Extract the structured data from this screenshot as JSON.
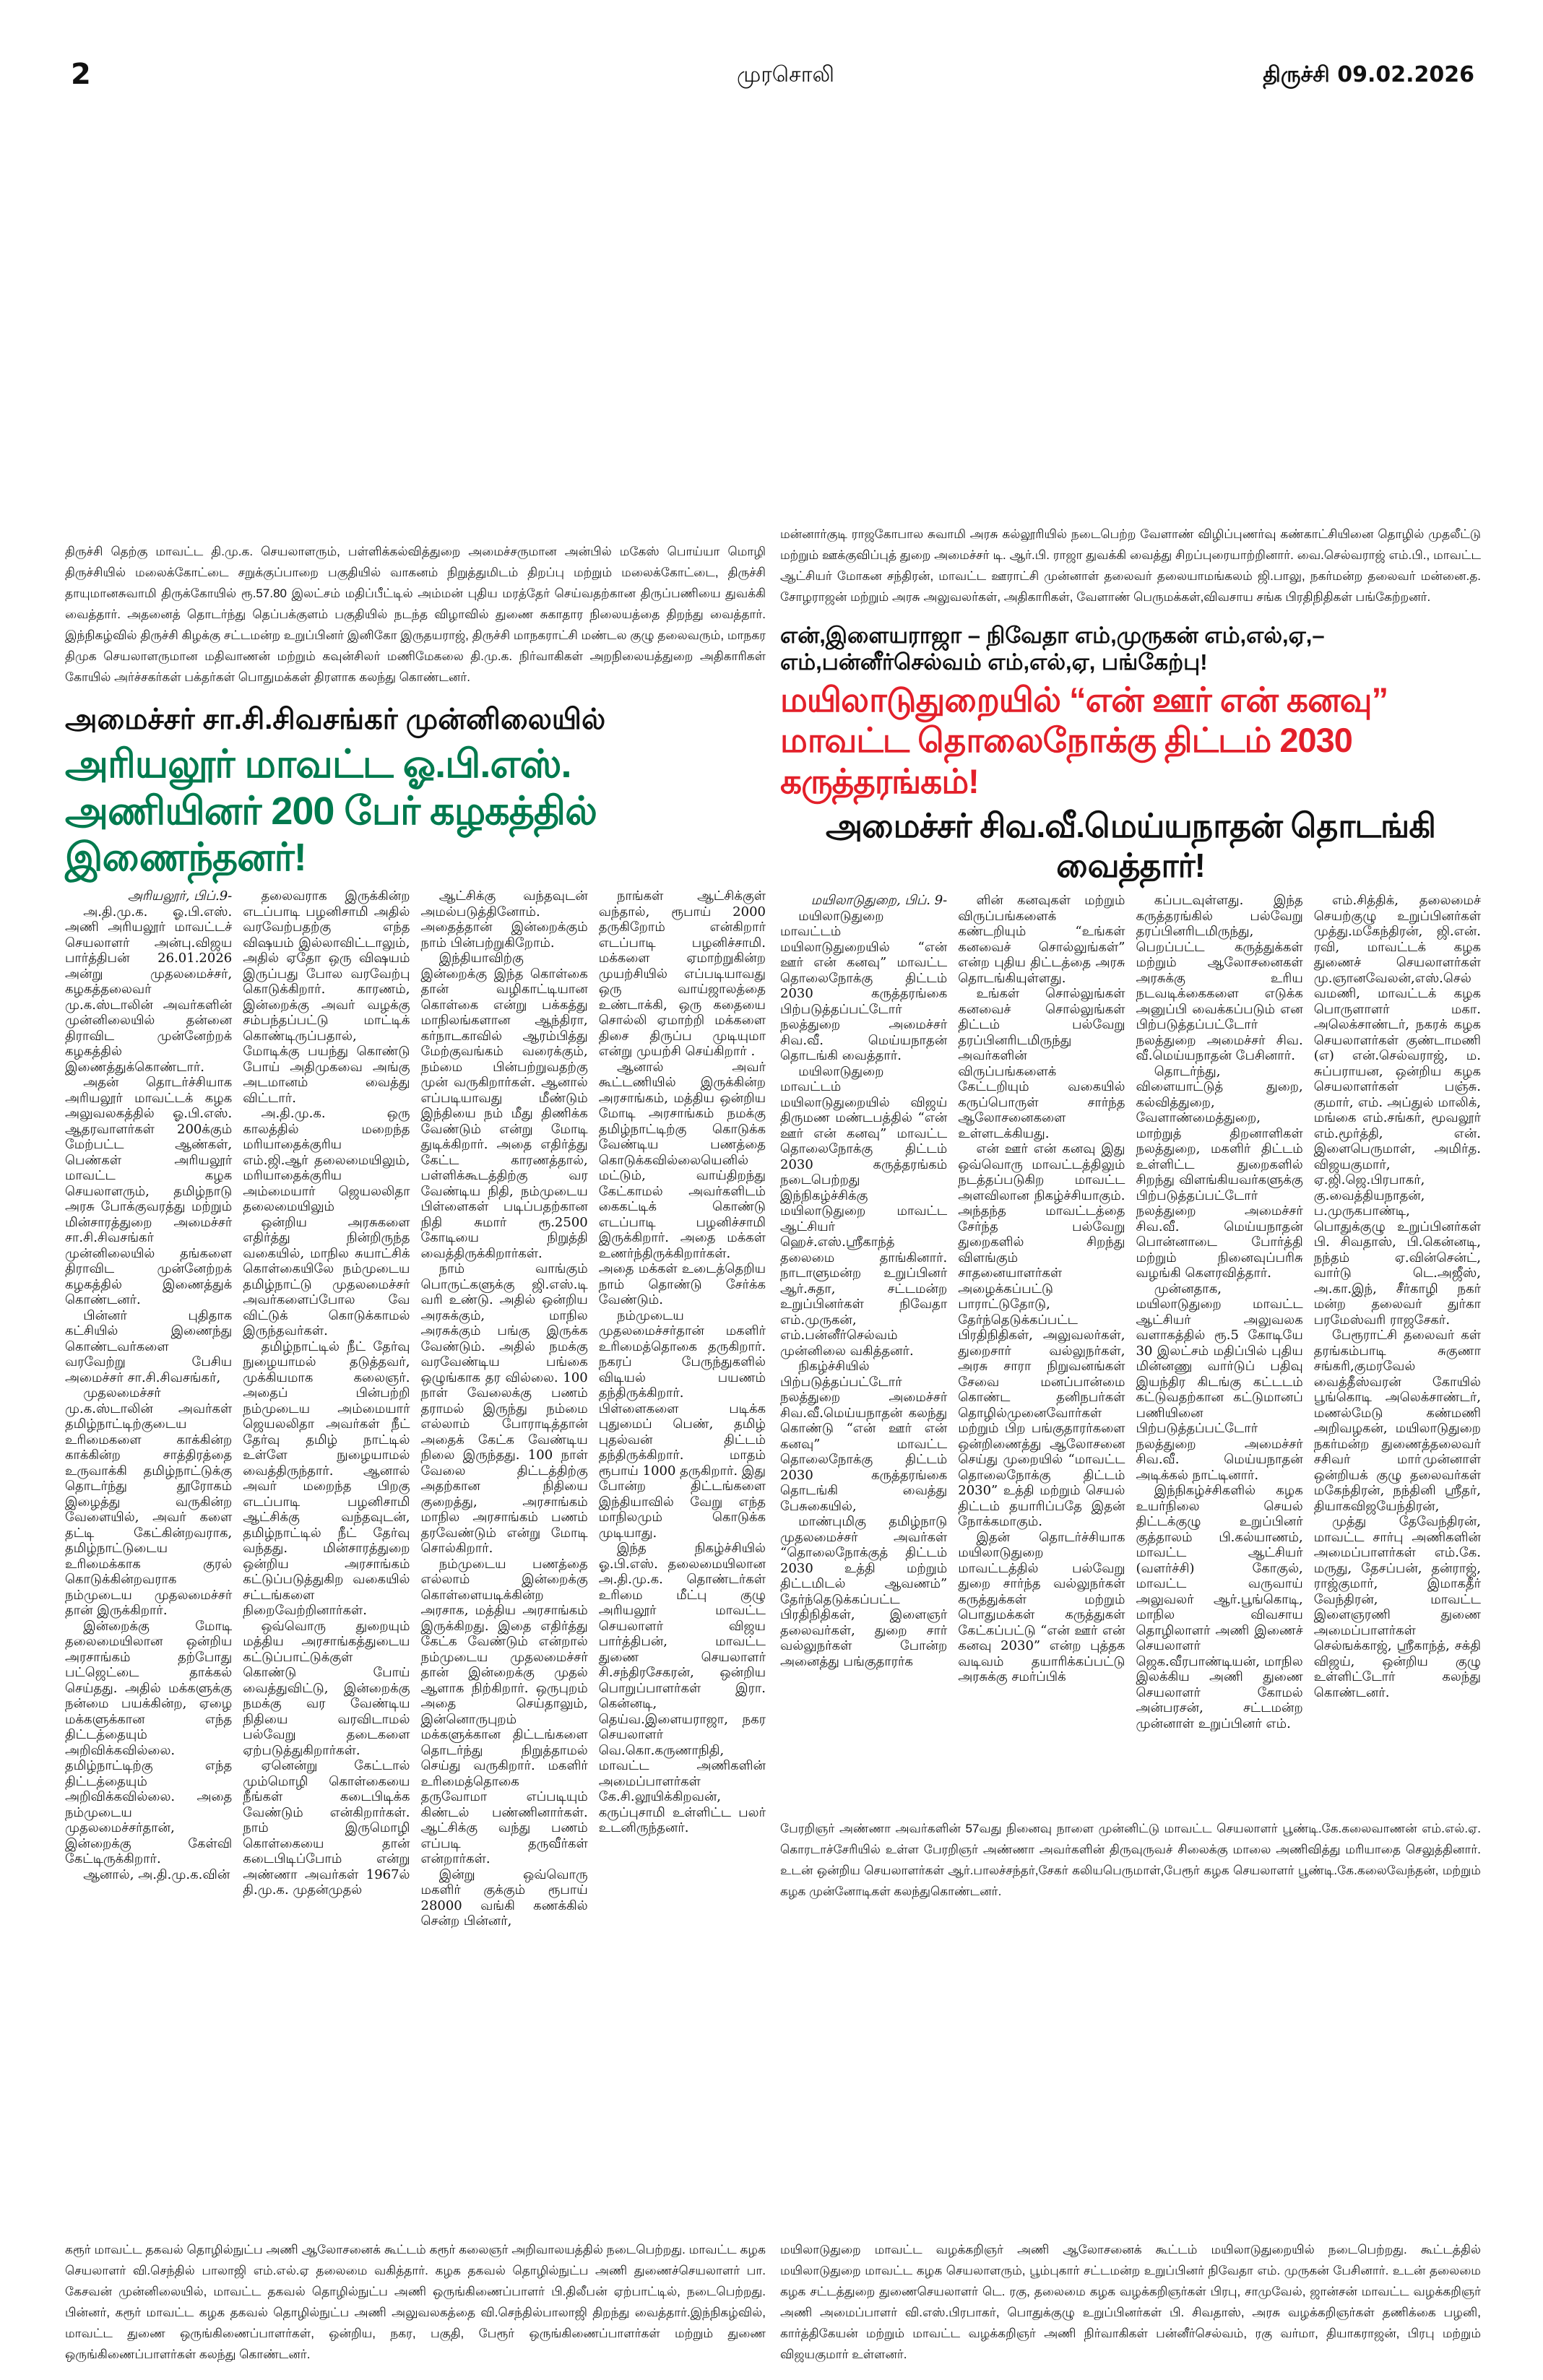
{
  "header": {
    "page_number": "2",
    "masthead": "முரசொலி",
    "edition_date": "திருச்சி  09.02.2026"
  },
  "colors": {
    "headline_red": "#e3202a",
    "headline_green": "#007a4e",
    "text": "#111111"
  },
  "captions": {
    "mannargudi": "மன்னார்குடி ராஜகோபால சுவாமி அரசு கல்லூரியில் நடைபெற்ற வேளாண் விழிப்புணர்வு கண்காட்சியினை தொழில் முதலீட்டு மற்றும் ஊக்குவிப்புத் துறை அமைச்சர் டி. ஆர்.பி. ராஜா துவக்கி வைத்து சிறப்புரையாற்றினார். வை.செல்வராஜ் எம்.பி., மாவட்ட ஆட்சியர் மோகன சந்திரன், மாவட்ட ஊராட்சி முன்னாள் தலைவர் தலையாமங்கலம் ஜி.பாலு, நகர்மன்ற தலைவர் மன்னை.த. சோழராஜன் மற்றும் அரசு அலுவலர்கள், அதிகாரிகள், வேளாண் பெருமக்கள்,விவசாய சங்க பிரதிநிதிகள் பங்கேற்றனர்.",
    "trichy": "திருச்சி தெற்கு மாவட்ட தி.மு.க. செயலாளரும், பள்ளிக்கல்வித்துறை அமைச்சருமான அன்பில் மகேஸ் பொய்யா மொழி திருச்சியில் மலைக்கோட்டை சறுக்குப்பாறை பகுதியில் வாகனம் நிறுத்துமிடம் திறப்பு மற்றும் மலைக்கோட்டை, திருச்சி தாயுமானசுவாமி திருக்கோயில் ரூ.57.80 இலட்சம் மதிப்பீட்டில் அம்மன் புதிய மரத்தேர் செய்வதற்கான திருப்பணியை துவக்கி வைத்தார். அதனைத் தொடர்ந்து தெப்பக்குளம் பகுதியில் நடந்த விழாவில் துணை சுகாதார நிலையத்தை திறந்து வைத்தார். இந்நிகழ்வில் திருச்சி கிழக்கு சட்டமன்ற உறுப்பினர் இனிகோ இருதயராஜ், திருச்சி மாநகராட்சி மண்டல குழு தலைவரும், மாநகர திமுக செயலாளருமான மதிவாணன் மற்றும் கவுன்சிலர் மணிமேகலை தி.மு.க. நிர்வாகிகள் அறநிலையத்துறை அதிகாரிகள் கோயில் அர்ச்சகர்கள் பக்தர்கள் பொதுமக்கள் திரளாக கலந்து கொண்டனர்.",
    "anna": "பேரறிஞர் அண்ணா அவர்களின் 57வது நினைவு நாளை முன்னிட்டு மாவட்ட செயலாளர் பூண்டி.கே.கலைவாணன் எம்.எல்.ஏ. கொரடாச்சேரியில் உள்ள பேரறிஞர் அண்ணா அவர்களின் திருவுருவச் சிலைக்கு மாலை அணிவித்து மரியாதை செலுத்தினார். உடன் ஒன்றிய செயலாளர்கள் ஆர்.பாலச்சந்தர்,சேகர் கலியபெருமாள்,பேரூர் கழக செயலாளர் பூண்டி.கே.கலைவேந்தன், மற்றும் கழக முன்னோடிகள் கலந்துகொண்டனர்.",
    "karur": "கரூர் மாவட்ட தகவல் தொழில்நுட்ப அணி ஆலோசனைக் கூட்டம் கரூர் கலைஞர் அறிவாலயத்தில் நடைபெற்றது. மாவட்ட கழக செயலாளர் வி.செந்தில் பாலாஜி எம்.எல்.ஏ தலைமை வகித்தார். கழக தகவல் தொழில்நுட்ப அணி துணைச்செயலாளர் பா. கேசவன் முன்னிலையில், மாவட்ட தகவல் தொழில்நுட்ப அணி ஒருங்கிணைப்பாளர் பி.திலீபன் ஏற்பாட்டில், நடைபெற்றது. பின்னர், கரூர் மாவட்ட கழக தகவல் தொழில்நுட்ப அணி அலுவலகத்தை வி.செந்தில்பாலாஜி திறந்து வைத்தார்.இந்நிகழ்வில், மாவட்ட துணை ஒருங்கிணைப்பாளர்கள், ஒன்றிய, நகர, பகுதி, பேரூர் ஒருங்கிணைப்பாளர்கள் மற்றும் துணை ஒருங்கிணைப்பாளர்கள் கலந்து கொண்டனர்.",
    "mayiladuthurai_lawyers": "மயிலாடுதுறை மாவட்ட வழக்கறிஞர் அணி ஆலோசனைக் கூட்டம் மயிலாடுதுறையில் நடைபெற்றது. கூட்டத்தில் மயிலாடுதுறை மாவட்ட கழக செயலாளரும், பூம்புகார் சட்டமன்ற உறுப்பினர் நிவேதா எம். முருகன் பேசினார். உடன் தலைமை கழக சட்டத்துறை துணைசெயலாளர் டெ. ரகு, தலைமை கழக வழக்கறிஞர்கள் பிரபு, சாமுவேல், ஜான்சன் மாவட்ட வழக்கறிஞர் அணி அமைப்பாளர் வி.எஸ்.பிரபாகர், பொதுக்குழு உறுப்பினர்கள் பி. சிவதாஸ், அரசு வழக்கறிஞர்கள் தணிக்கை பழனி, கார்த்திகேயன் மற்றும் மாவட்ட வழக்கறிஞர் அணி நிர்வாகிகள் பன்னீர்செல்வம், ரகு வர்மா, தியாகராஜன், பிரபு மற்றும் விஜயகுமார் உள்ளனர்."
  },
  "article_right": {
    "kicker": "என்,இளையராஜா – நிவேதா எம்,முருகன் எம்,எல்,ஏ,– எம்,பன்னீர்செல்வம் எம்,எல்,ஏ, பங்கேற்பு!",
    "headline": "மயிலாடுதுறையில் “என் ஊர் என் கனவு” மாவட்ட தொலைநோக்கு திட்டம் 2030 கருத்தரங்கம்!",
    "subheadline": "அமைச்சர் சிவ.வீ.மெய்யநாதன் தொடங்கி வைத்தார்!",
    "columns": [
      [
        "மயிலாடுதுறை, பிப். 9-",
        "மயிலாடுதுறை மாவட்டம் மயிலாடுதுறையில் “என் ஊர் என் கனவு” மாவட்ட தொலைநோக்கு திட்டம் 2030 கருத்தரங்கை பிற்படுத்தப்பட்டோர் நலத்துறை அமைச்சர் சிவ.வீ. மெய்யநாதன் தொடங்கி வைத்தார்.",
        "மயிலாடுதுறை மாவட்டம் மயிலாடுதுறையில் விஜய் திருமண மண்டபத்தில் “என் ஊர் என் கனவு” மாவட்ட தொலைநோக்கு திட்டம் 2030 கருத்தரங்கம் நடைபெற்றது இந்நிகழ்ச்சிக்கு மயிலாடுதுறை மாவட்ட ஆட்சியர் ஹெச்.எஸ்.ஸ்ரீகாந்த் தலைமை தாங்கினார். நாடாளுமன்ற உறுப்பினர் ஆர்.சுதா, சட்டமன்ற உறுப்பினர்கள் நிவேதா எம்.முருகன், எம்.பன்னீர்செல்வம் முன்னிலை வகித்தனர்.",
        "நிகழ்ச்சியில் பிற்படுத்தப்பட்டோர் நலத்துறை அமைச்சர் சிவ.வீ.மெய்யநாதன் கலந்து கொண்டு “என் ஊர் என் கனவு” மாவட்ட தொலைநோக்கு திட்டம் 2030 கருத்தரங்கை தொடங்கி வைத்து பேசுகையில்,",
        "மாண்புமிகு தமிழ்நாடு முதலமைச்சர் அவர்கள் “தொலைநோக்குத் திட்டம் 2030 உத்தி மற்றும் திட்டமிடல் ஆவணம்” தேர்ந்தெடுக்கப்பட்ட பிரதிநிதிகள், இளைஞர் தலைவர்கள், துறை சார் வல்லுநர்கள் போன்ற அனைத்து பங்குதாரர்க"
      ],
      [
        "ளின் கனவுகள் மற்றும் விருப்பங்களைக் கண்டறியும் “உங்கள் கனவைச் சொல்லுங்கள்” என்ற புதிய திட்டத்தை அரசு தொடங்கியுள்ளது.",
        "உங்கள் சொல்லுங்கள் கனவைச் சொல்லுங்கள் திட்டம் பல்வேறு தரப்பினரிடமிருந்து அவர்களின் விருப்பங்களைக் கேட்டறியும் வகையில் கருப்பொருள் சார்ந்த ஆலோசனைகளை உள்ளடக்கியது.",
        "என் ஊர் என் கனவு இது ஒவ்வொரு மாவட்டத்திலும் நடத்தப்படுகிற மாவட்ட அளவிலான நிகழ்ச்சியாகும். அந்தந்த மாவட்டத்தை சேர்ந்த பல்வேறு துறைகளில் சிறந்து விளங்கும் சாதனையாளர்கள் அழைக்கப்பட்டு பாராட்டுதோடு, தேர்ந்தெடுக்கப்பட்ட பிரதிநிதிகள், அலுவலர்கள், துறைசார் வல்லுநர்கள், அரசு சாரா நிறுவனங்கள் சேவை மனப்பான்மை கொண்ட தனிநபர்கள் தொழில்முனைவோர்கள் மற்றும் பிற பங்குதாரர்களை ஒன்றிணைத்து ஆலோசனை செய்து முறையில் “மாவட்ட தொலைநோக்கு திட்டம் 2030” உத்தி மற்றும் செயல் திட்டம் தயாரிப்பதே இதன் நோக்கமாகும்.",
        "இதன் தொடர்ச்சியாக மயிலாடுதுறை மாவட்டத்தில் பல்வேறு துறை சார்ந்த வல்லுநர்கள் கருத்துக்கள் மற்றும் பொதுமக்கள் கருத்துகள் கேட்கப்பட்டு “என் ஊர் என் கனவு 2030” என்ற புத்தக வடிவம் தயாரிக்கப்பட்டு அரசுக்கு சமர்ப்பிக்"
      ],
      [
        "கப்படவுள்ளது. இந்த கருத்தரங்கில் பல்வேறு தரப்பினரிடமிருந்து, பெறப்பட்ட கருத்துக்கள் மற்றும் ஆலோசனைகள் அரசுக்கு உரிய நடவடிக்கைகளை எடுக்க அனுப்பி வைக்கப்படும் என பிற்படுத்தப்பட்டோர் நலத்துறை அமைச்சர் சிவ. வீ.மெய்யநாதன் பேசினார்.",
        "தொடர்ந்து, விளையாட்டுத் துறை, கல்வித்துறை, வேளாண்மைத்துறை, மாற்றுத் திறனாளிகள் நலத்துறை, மகளிர் திட்டம் உள்ளிட்ட துறைகளில் சிறந்து விளங்கியவர்களுக்கு பிற்படுத்தப்பட்டோர் நலத்துறை அமைச்சர் சிவ.வீ. மெய்யநாதன் பொன்னாடை போர்த்தி மற்றும் நினைவுப்பரிசு வழங்கி கௌரவித்தார்.",
        "முன்னதாக, மயிலாடுதுறை மாவட்ட ஆட்சியர் அலுவலக வளாகத்தில் ரூ.5 கோடியே 30 இலட்சம் மதிப்பில் புதிய மின்னணு வார்டுப் பதிவு இயந்திர கிடங்கு கட்டடம் கட்டுவதற்கான கட்டுமானப் பணியினை பிற்படுத்தப்பட்டோர் நலத்துறை அமைச்சர் சிவ.வீ. மெய்யநாதன் அடிக்கல் நாட்டினார்.",
        "இந்நிகழ்ச்சிகளில் கழக உயர்நிலை செயல் திட்டக்குழு உறுப்பினர் குத்தாலம் பி.கல்யாணம், மாவட்ட ஆட்சியர் (வளர்ச்சி) கோகுல், மாவட்ட வருவாய் அலுவலர் ஆர்.பூங்கொடி, மாநில விவசாய தொழிலாளர் அணி இணைச் செயலாளர் ஜெக.வீரபாண்டியன், மாநில இலக்கிய அணி துணை செயலாளர் கோமல் அன்பரசன், சட்டமன்ற முன்னாள் உறுப்பினர் எம்."
      ],
      [
        "எம்.சித்திக், தலைமைச் செயற்குழு உறுப்பினர்கள் முத்து.மகேந்திரன், ஜி.என். ரவி, மாவட்டக் கழக துணைச் செயலாளர்கள் மு.ஞானவேலன்,எஸ்.செல்வமணி, மாவட்டக் கழக பொருளாளர் மகா. அலெக்சாண்டர், நகரக் கழக செயலாளர்கள் குண்டாமணி (எ) என்.செல்வராஜ், ம. சுப்பராயன, ஒன்றிய கழக செயலாளர்கள் பஞ்சு. குமார், எம். அப்துல் மாலிக், மங்கை எம்.சங்கர், மூவலூர் எம்.மூர்த்தி, என். இளைபெருமாள், அமிர்த. விஜயகுமார், ஏ.ஜி.ஜெ.பிரபாகர், கு.வைத்தியநாதன், ப.முருகபாண்டி, பொதுக்குழு உறுப்பினர்கள் பி. சிவதாஸ், பி.கென்னடி, நந்தம் ஏ.வின்சென்ட், வார்டு டெ.அஜீஸ், அ.கா.இந், சீர்காழி நகர் மன்ற தலைவர் துர்கா பரமேஸ்வரி ராஜசேகர்.",
        "பேரூராட்சி தலைவர் கள் தரங்கம்பாடி சுகுணா சங்கரி,குமரவேல் வைத்தீஸ்வரன் கோயில் பூங்கொடி அலெக்சாண்டர், மணல்மேடு கண்மணி அறிவழகன், மயிலாடுதுறை நகர்மன்ற துணைத்தலைவர் சசிவர் மாா்முன்னாள் ஒன்றியக் குழு தலைவர்கள் மகேந்திரன், நந்தினி ஸ்ரீதர், தியாகவிஜயேந்திரன்,",
        "முத்து தேவேந்திரன், மாவட்ட சார்பு அணிகளின் அமைப்பாளர்கள் எம்.கே. மருது, தேசப்பன், தன்ராஜ், ராஜ்குமார், இமாகதீர் வேந்திரன், மாவட்ட இளைஞரணி துணை அமைப்பாளர்கள் செல்ஙக்காஜ், ஸ்ரீகாந்த், சக்தி விஜய், ஒன்றிய குழு உள்ளிட்டோர் கலந்து கொண்டனர்."
      ]
    ]
  },
  "article_left": {
    "kicker": "அமைச்சர் சா.சி.சிவசங்கர் முன்னிலையில்",
    "headline": "அரியலூர் மாவட்ட ஓ.பி.எஸ். அணியினர் 200  பேர் கழகத்தில் இணைந்தனர்!",
    "columns": [
      [
        "அரியலூர், பிப்.9-",
        "அ.தி.மு.க. ஓ.பி.எஸ். அணி அரியலூர் மாவட்டச் செயலாளர் அன்பு.விஜய பார்த்திபன் 26.01.2026 அன்று முதலமைச்சர், கழகத்தலைவர் மு.க.ஸ்டாலின் அவர்களின் முன்னிலையில் தன்னை திராவிட முன்னேற்றக் கழகத்தில் இணைத்துக்கொண்டார்.",
        "அதன் தொடர்ச்சியாக அரியலூர் மாவட்டக் கழக அலுவலகத்தில் ஓ.பி.எஸ். ஆதரவாளர்கள் 200க்கும் மேற்பட்ட ஆண்கள், பெண்கள் அரியலூர் மாவட்ட கழக செயலாளரும், தமிழ்நாடு அரசு போக்குவரத்து மற்றும் மின்சாரத்துறை அமைச்சர் சா.சி.சிவசங்கர் முன்னிலையில் தங்களை திராவிட முன்னேற்றக் கழகத்தில் இணைத்துக் கொண்டனர்.",
        "பின்னர் புதிதாக கட்சியில் இணைந்து கொண்டவர்களை வரவேற்று பேசிய அமைச்சர் சா.சி.சிவசங்கர்,",
        "முதலமைச்சர் மு.க.ஸ்டாலின் அவர்கள் தமிழ்நாட்டிற்குடைய உரிமைகளை காக்கின்ற காக்கின்ற சாத்திரத்தை உருவாக்கி தமிழ்நாட்டுக்கு தொடர்ந்து தூரோகம் இழைத்து வருகின்ற வேளையில், அவர் களை தட்டி கேட்கின்றவராக, தமிழ்நாட்டுடைய உரிமைக்காக குரல் கொடுக்கின்றவராக நம்முடைய முதலமைச்சர் தான் இருக்கிறார்.",
        "இன்றைக்கு மோடி தலைமையிலான ஒன்றிய அரசாங்கம் தற்போது பட்ஜெட்டை தாக்கல் செய்தது. அதில் மக்களுக்கு நன்மை பயக்கின்ற, ஏழை மக்களுக்கான எந்த திட்டத்தையும் அறிவிக்கவில்லை. தமிழ்நாட்டிற்கு எந்த திட்டத்தையும் அறிவிக்கவில்லை. அதை நம்முடைய முதலமைச்சர்தான், இன்றைக்கு கேள்வி கேட்டிருக்கிறார்.",
        "ஆனால், அ.தி.மு.க.வின்"
      ],
      [
        "தலைவராக இருக்கின்ற எடப்பாடி பழனிசாமி அதில் வரவேற்பதற்கு எந்த விஷயம் இல்லாவிட்டாலும், அதில் ஏதோ ஒரு விஷயம் இருப்பது போல வரவேற்பு கொடுக்கிறார். காரணம், இன்றைக்கு அவர் வழக்கு சம்பந்தப்பட்டு மாட்டிக் கொண்டிருப்பதால், மோடிக்கு பயந்து கொண்டு போய் அதிமுகவை அங்கு அடமானம் வைத்து விட்டார்.",
        "அ.தி.மு.க. ஒரு காலத்தில் மறைந்த மரியாதைக்குரிய எம்.ஜி.ஆர் தலைமையிலும், மரியாதைக்குரிய அம்மையார் ஜெயலலிதா தலைமையிலும்",
        "ஒன்றிய அரசுகளை எதிர்த்து நின்றிருந்த வகையில், மாநில சுயாட்சிக் கொள்கையிலே நம்முடைய தமிழ்நாட்டு முதலமைச்சர் அவர்களைப்போல வே விட்டுக் கொடுக்காமல் இருந்தவர்கள்.",
        "தமிழ்நாட்டில் நீட் தேர்வு நுழையாமல் தடுத்தவர், முக்கியமாக கலைஞர். அதைப் பின்பற்றி நம்முடைய அம்மையார் ஜெயலலிதா அவர்கள் நீட் தேர்வு தமிழ் நாட்டில் உள்ளே நுழையாமல் வைத்திருந்தார். ஆனால் அவர் மறைந்த பிறகு எடப்பாடி பழனிசாமி ஆட்சிக்கு வந்தவுடன், தமிழ்நாட்டில் நீட் தேர்வு வந்தது. மின்சாரத்துறை ஒன்றிய அரசாங்கம் கட்டுப்படுத்துகிற வகையில் சட்டங்களை நிறைவேற்றினார்கள்.",
        "ஒவ்வொரு துறையும் மத்திய அரசாங்கத்துடைய கட்டுப்பாட்டுக்குள் கொண்டு போய் வைத்துவிட்டு, இன்றைக்கு நமக்கு வர வேண்டிய நிதியை வரவிடாமல் பல்வேறு தடைகளை ஏற்படுத்துகிறார்கள்.",
        "ஏனென்று கேட்டால் மும்மொழி கொள்கையை நீங்கள் கடைபிடிக்க வேண்டும் என்கிறார்கள். நாம் இருமொழி கொள்கையை தான் கடைபிடிப்போம் என்று அண்ணா அவர்கள் 1967ல் தி.மு.க. முதன்முதல்"
      ],
      [
        "ஆட்சிக்கு வந்தவுடன் அமல்படுத்தினோம். அதைத்தான் இன்றைக்கும் நாம் பின்பற்றுகிறோம்.",
        "இந்தியாவிற்கு இன்றைக்கு இந்த கொள்கை தான் வழிகாட்டியான கொள்கை என்று பக்கத்து மாநிலங்களான ஆந்திரா, கர்நாடகாவில் ஆரம்பித்து மேற்குவங்கம் வரைக்கும், நம்மை பின்பற்றுவதற்கு முன் வருகிறார்கள். ஆனால் எப்படியாவது மீண்டும் இந்தியை நம் மீது திணிக்க வேண்டும் என்று மோடி துடிக்கிறார். அதை எதிர்த்து கேட்ட காரணத்தால், பள்ளிக்கூடத்திற்கு வர வேண்டிய நிதி, நம்முடைய பிள்ளைகள் படிப்பதற்கான நிதி சுமார் ரூ.2500 கோடியை நிறுத்தி வைத்திருக்கிறார்கள்.",
        "நாம் வாங்கும் பொருட்களுக்கு ஜி.எஸ்.டி வரி உண்டு. அதில் ஒன்றிய அரசுக்கும், மாநில அரசுக்கும் பங்கு இருக்க வேண்டும். அதில் நமக்கு வரவேண்டிய பங்கை ஒழுங்காக தர வில்லை. 100 நாள் வேலைக்கு பணம் தராமல் இருந்து நம்மை எல்லாம் போராடித்தான் அதைக் கேட்க வேண்டிய நிலை இருந்தது. 100 நாள் வேலை திட்டத்திற்கு அதற்கான நிதியை குறைத்து, அரசாங்கம் மாநில அரசாங்கம் பணம் தரவேண்டும் என்று மோடி சொல்கிறார்.",
        "நம்முடைய பணத்தை எல்லாம் இன்றைக்கு கொள்ளையடிக்கின்ற அரசாக, மத்திய அரசாங்கம் இருக்கிறது. இதை எதிர்த்து கேட்க வேண்டும் என்றால் நம்முடைய முதலமைச்சர் தான் இன்றைக்கு முதல் ஆளாக நிற்கிறார். ஒருபுறம் அதை செய்தாலும், இன்னொருபுறம் மக்களுக்கான திட்டங்களை தொடர்ந்து நிறுத்தாமல் செய்து வருகிறார். மகளிர் உரிமைத்தொகை தருவோமா எப்படியும் கிண்டல் பண்ணினார்கள். ஆட்சிக்கு வந்து பணம் எப்படி தருவீர்கள் என்றார்கள்.",
        "இன்று ஒவ்வொரு மகளிர் குக்கும் ரூபாய் 28000 வங்கி கணக்கில் சென்ற பின்னர்,"
      ],
      [
        "நாங்கள் ஆட்சிக்குள் வந்தால், ரூபாய் 2000 தருகிறோம் என்கிறார் எடப்பாடி பழனிச்சாமி. மக்களை ஏமாற்றுகின்ற முயற்சியில் எப்படியாவது ஒரு வாய்ஜாலத்தை உண்டாக்கி, ஒரு கதையை சொல்லி ஏமாற்றி மக்களை திசை திருப்ப முடியுமா என்று முயற்சி செய்கிறார் .",
        "ஆனால் அவர் கூட்டணியில் இருக்கின்ற அரசாங்கம், மத்திய ஒன்றிய மோடி அரசாங்கம் நமக்கு தமிழ்நாட்டிற்கு கொடுக்க வேண்டிய பணத்தை கொடுக்கவில்லையெனில் மட்டும், வாய்திறந்து கேட்காமல் அவர்களிடம் கைகட்டிக் கொண்டு எடப்பாடி பழனிச்சாமி இருக்கிறார். அதை மக்கள் உணர்ந்திருக்கிறார்கள். அதை மக்கள் உடைத்தெறிய நாம் தொண்டு சேர்க்க வேண்டும்.",
        "நம்முடைய முதலமைச்சர்தான் மகளிர் உரிமைத்தொகை தருகிறார். நகரப் பேருந்துகளில் விடியல் பயணம் தந்திருக்கிறார். பிள்ளைகளை படிக்க புதுமைப் பெண், தமிழ் புதல்வன் திட்டம் தந்திருக்கிறார். மாதம் ரூபாய் 1000 தருகிறார். இது போன்ற திட்டங்களை இந்தியாவில் வேறு எந்த மாநிலமும் கொடுக்க முடியாது.",
        "இந்த நிகழ்ச்சியில் ஓ.பி.எஸ். தலைமையிலான அ.தி.மு.க. தொண்டர்கள் உரிமை மீட்பு குழு அரியலூர் மாவட்ட செயலாளர் விஜய பார்த்திபன், மாவட்ட துணை செயலாளர் சி.சந்திரசேகரன், ஒன்றிய பொறுப்பாளர்கள் இரா. கென்னடி, தெய்வ.இளையராஜா, நகர செயலாளர் வெ.கொ.கருணாநிதி, மாவட்ட அணிகளின் அமைப்பாளர்கள் கே.சி.லூயிக்கிறவன், கருப்புசாமி உள்ளிட்ட பலர் உடனிருந்தனர்."
      ]
    ]
  }
}
